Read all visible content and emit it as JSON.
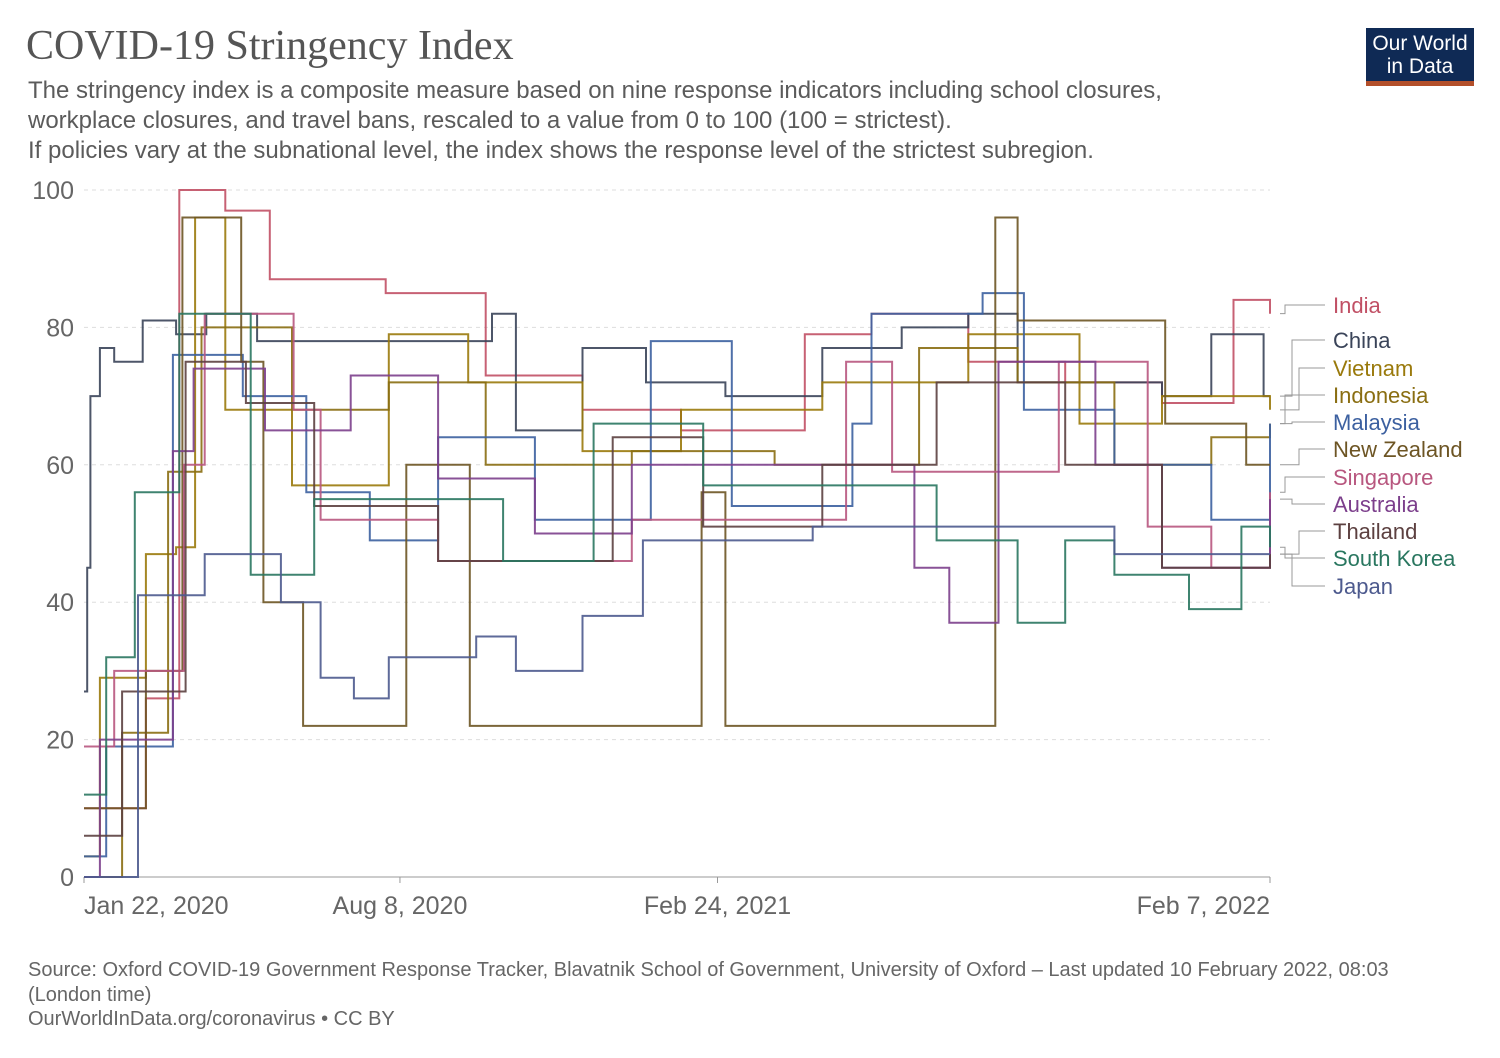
{
  "header": {
    "title": "COVID-19 Stringency Index",
    "subtitle": "The stringency index is a composite measure based on nine response indicators including school closures,\nworkplace closures, and travel bans, rescaled to a value from 0 to 100 (100 = strictest).\n If policies vary at the subnational level, the index shows the response level of the strictest subregion.",
    "logo": "Our World in Data"
  },
  "footer": {
    "source": "Source: Oxford COVID-19 Government Response Tracker, Blavatnik School of Government, University of Oxford – Last updated 10 February 2022, 08:03 (London time)",
    "link": "OurWorldInData.org/coronavirus • CC BY"
  },
  "chart_data": {
    "type": "line",
    "step": true,
    "grid": true,
    "legend_placement": "right",
    "xlim": [
      "2020-01-22",
      "2022-02-07"
    ],
    "ylim": [
      0,
      100
    ],
    "x_ticks": [
      {
        "date": "2020-01-22",
        "label": "Jan 22, 2020"
      },
      {
        "date": "2020-08-08",
        "label": "Aug 8, 2020"
      },
      {
        "date": "2021-02-24",
        "label": "Feb 24, 2021"
      },
      {
        "date": "2022-02-07",
        "label": "Feb 7, 2022"
      }
    ],
    "y_ticks": [
      0,
      20,
      40,
      60,
      80,
      100
    ],
    "series": [
      {
        "name": "India",
        "color": "#c15065",
        "points": [
          [
            "2020-01-22",
            10
          ],
          [
            "2020-03-01",
            26
          ],
          [
            "2020-03-22",
            100
          ],
          [
            "2020-04-20",
            97
          ],
          [
            "2020-05-18",
            87
          ],
          [
            "2020-07-30",
            85
          ],
          [
            "2020-10-01",
            73
          ],
          [
            "2020-12-01",
            68
          ],
          [
            "2021-02-01",
            65
          ],
          [
            "2021-04-20",
            79
          ],
          [
            "2021-06-01",
            82
          ],
          [
            "2021-08-01",
            75
          ],
          [
            "2021-10-01",
            72
          ],
          [
            "2021-12-01",
            69
          ],
          [
            "2022-01-15",
            84
          ],
          [
            "2022-02-07",
            82
          ]
        ]
      },
      {
        "name": "China",
        "color": "#3a4459",
        "points": [
          [
            "2020-01-22",
            27
          ],
          [
            "2020-01-24",
            45
          ],
          [
            "2020-01-26",
            70
          ],
          [
            "2020-02-01",
            77
          ],
          [
            "2020-02-10",
            75
          ],
          [
            "2020-02-28",
            81
          ],
          [
            "2020-03-20",
            79
          ],
          [
            "2020-04-08",
            82
          ],
          [
            "2020-05-10",
            78
          ],
          [
            "2020-10-05",
            82
          ],
          [
            "2020-10-20",
            65
          ],
          [
            "2020-12-01",
            77
          ],
          [
            "2021-01-10",
            72
          ],
          [
            "2021-03-01",
            70
          ],
          [
            "2021-05-01",
            77
          ],
          [
            "2021-06-20",
            80
          ],
          [
            "2021-08-01",
            82
          ],
          [
            "2021-09-01",
            72
          ],
          [
            "2021-12-01",
            70
          ],
          [
            "2022-01-01",
            79
          ],
          [
            "2022-02-03",
            70
          ]
        ]
      },
      {
        "name": "Vietnam",
        "color": "#9a7a0c",
        "points": [
          [
            "2020-01-22",
            3
          ],
          [
            "2020-02-01",
            29
          ],
          [
            "2020-03-01",
            47
          ],
          [
            "2020-03-20",
            48
          ],
          [
            "2020-04-01",
            96
          ],
          [
            "2020-04-20",
            68
          ],
          [
            "2020-06-01",
            57
          ],
          [
            "2020-08-01",
            79
          ],
          [
            "2020-09-20",
            72
          ],
          [
            "2020-12-01",
            62
          ],
          [
            "2021-02-01",
            68
          ],
          [
            "2021-05-01",
            72
          ],
          [
            "2021-08-01",
            79
          ],
          [
            "2021-10-10",
            66
          ],
          [
            "2021-12-01",
            70
          ],
          [
            "2022-02-07",
            68
          ]
        ]
      },
      {
        "name": "Indonesia",
        "color": "#8a6e12",
        "points": [
          [
            "2020-01-22",
            0
          ],
          [
            "2020-02-15",
            21
          ],
          [
            "2020-03-15",
            59
          ],
          [
            "2020-04-05",
            80
          ],
          [
            "2020-06-01",
            68
          ],
          [
            "2020-08-01",
            72
          ],
          [
            "2020-10-01",
            60
          ],
          [
            "2021-01-01",
            62
          ],
          [
            "2021-04-01",
            60
          ],
          [
            "2021-07-01",
            77
          ],
          [
            "2021-09-01",
            72
          ],
          [
            "2021-11-01",
            60
          ],
          [
            "2022-01-01",
            64
          ],
          [
            "2022-02-07",
            66
          ]
        ]
      },
      {
        "name": "Malaysia",
        "color": "#3c60a0",
        "points": [
          [
            "2020-01-22",
            3
          ],
          [
            "2020-02-05",
            19
          ],
          [
            "2020-03-18",
            76
          ],
          [
            "2020-05-01",
            70
          ],
          [
            "2020-06-10",
            56
          ],
          [
            "2020-07-20",
            49
          ],
          [
            "2020-09-01",
            64
          ],
          [
            "2020-11-01",
            52
          ],
          [
            "2021-01-13",
            78
          ],
          [
            "2021-03-05",
            54
          ],
          [
            "2021-05-20",
            66
          ],
          [
            "2021-06-01",
            82
          ],
          [
            "2021-08-10",
            85
          ],
          [
            "2021-09-05",
            68
          ],
          [
            "2021-11-01",
            60
          ],
          [
            "2022-01-01",
            52
          ],
          [
            "2022-02-07",
            66
          ]
        ]
      },
      {
        "name": "New Zealand",
        "color": "#6d5524",
        "points": [
          [
            "2020-01-22",
            10
          ],
          [
            "2020-03-01",
            30
          ],
          [
            "2020-03-24",
            96
          ],
          [
            "2020-04-30",
            75
          ],
          [
            "2020-05-14",
            40
          ],
          [
            "2020-06-08",
            22
          ],
          [
            "2020-08-12",
            60
          ],
          [
            "2020-09-21",
            22
          ],
          [
            "2021-02-14",
            56
          ],
          [
            "2021-03-01",
            22
          ],
          [
            "2021-08-18",
            96
          ],
          [
            "2021-09-01",
            81
          ],
          [
            "2021-12-03",
            66
          ],
          [
            "2022-01-23",
            60
          ],
          [
            "2022-02-07",
            60
          ]
        ]
      },
      {
        "name": "Singapore",
        "color": "#b8577f",
        "points": [
          [
            "2020-01-22",
            19
          ],
          [
            "2020-02-10",
            30
          ],
          [
            "2020-03-25",
            60
          ],
          [
            "2020-04-07",
            82
          ],
          [
            "2020-06-02",
            68
          ],
          [
            "2020-06-19",
            52
          ],
          [
            "2020-09-01",
            46
          ],
          [
            "2021-01-01",
            52
          ],
          [
            "2021-05-16",
            75
          ],
          [
            "2021-06-14",
            59
          ],
          [
            "2021-09-27",
            75
          ],
          [
            "2021-11-22",
            51
          ],
          [
            "2022-01-01",
            45
          ],
          [
            "2022-02-07",
            56
          ]
        ]
      },
      {
        "name": "Australia",
        "color": "#7c3f8c",
        "points": [
          [
            "2020-01-22",
            0
          ],
          [
            "2020-02-01",
            20
          ],
          [
            "2020-03-18",
            62
          ],
          [
            "2020-03-31",
            74
          ],
          [
            "2020-05-15",
            65
          ],
          [
            "2020-07-08",
            73
          ],
          [
            "2020-09-01",
            58
          ],
          [
            "2020-11-01",
            50
          ],
          [
            "2021-01-01",
            60
          ],
          [
            "2021-06-28",
            45
          ],
          [
            "2021-07-20",
            37
          ],
          [
            "2021-08-20",
            75
          ],
          [
            "2021-10-20",
            60
          ],
          [
            "2021-12-01",
            45
          ],
          [
            "2022-02-07",
            55
          ]
        ]
      },
      {
        "name": "Thailand",
        "color": "#5c4040",
        "points": [
          [
            "2020-01-22",
            6
          ],
          [
            "2020-02-15",
            27
          ],
          [
            "2020-03-26",
            75
          ],
          [
            "2020-05-03",
            69
          ],
          [
            "2020-06-15",
            54
          ],
          [
            "2020-09-01",
            46
          ],
          [
            "2020-12-20",
            64
          ],
          [
            "2021-02-15",
            51
          ],
          [
            "2021-05-01",
            60
          ],
          [
            "2021-07-12",
            72
          ],
          [
            "2021-10-01",
            60
          ],
          [
            "2021-12-01",
            45
          ],
          [
            "2022-02-07",
            47
          ]
        ]
      },
      {
        "name": "South Korea",
        "color": "#2a7760",
        "points": [
          [
            "2020-01-22",
            12
          ],
          [
            "2020-02-05",
            32
          ],
          [
            "2020-02-23",
            56
          ],
          [
            "2020-03-22",
            82
          ],
          [
            "2020-05-06",
            44
          ],
          [
            "2020-06-15",
            55
          ],
          [
            "2020-10-12",
            46
          ],
          [
            "2020-12-08",
            66
          ],
          [
            "2021-02-15",
            57
          ],
          [
            "2021-07-12",
            49
          ],
          [
            "2021-09-01",
            37
          ],
          [
            "2021-10-01",
            49
          ],
          [
            "2021-11-01",
            44
          ],
          [
            "2021-12-18",
            39
          ],
          [
            "2022-01-20",
            51
          ],
          [
            "2022-02-07",
            48
          ]
        ]
      },
      {
        "name": "Japan",
        "color": "#4d5a8e",
        "points": [
          [
            "2020-01-22",
            0
          ],
          [
            "2020-02-25",
            41
          ],
          [
            "2020-04-07",
            47
          ],
          [
            "2020-05-25",
            40
          ],
          [
            "2020-06-19",
            29
          ],
          [
            "2020-07-10",
            26
          ],
          [
            "2020-08-01",
            32
          ],
          [
            "2020-09-25",
            35
          ],
          [
            "2020-10-20",
            30
          ],
          [
            "2020-12-01",
            38
          ],
          [
            "2021-01-08",
            49
          ],
          [
            "2021-04-25",
            51
          ],
          [
            "2021-09-30",
            51
          ],
          [
            "2021-11-01",
            47
          ],
          [
            "2022-02-07",
            47
          ]
        ]
      }
    ]
  }
}
